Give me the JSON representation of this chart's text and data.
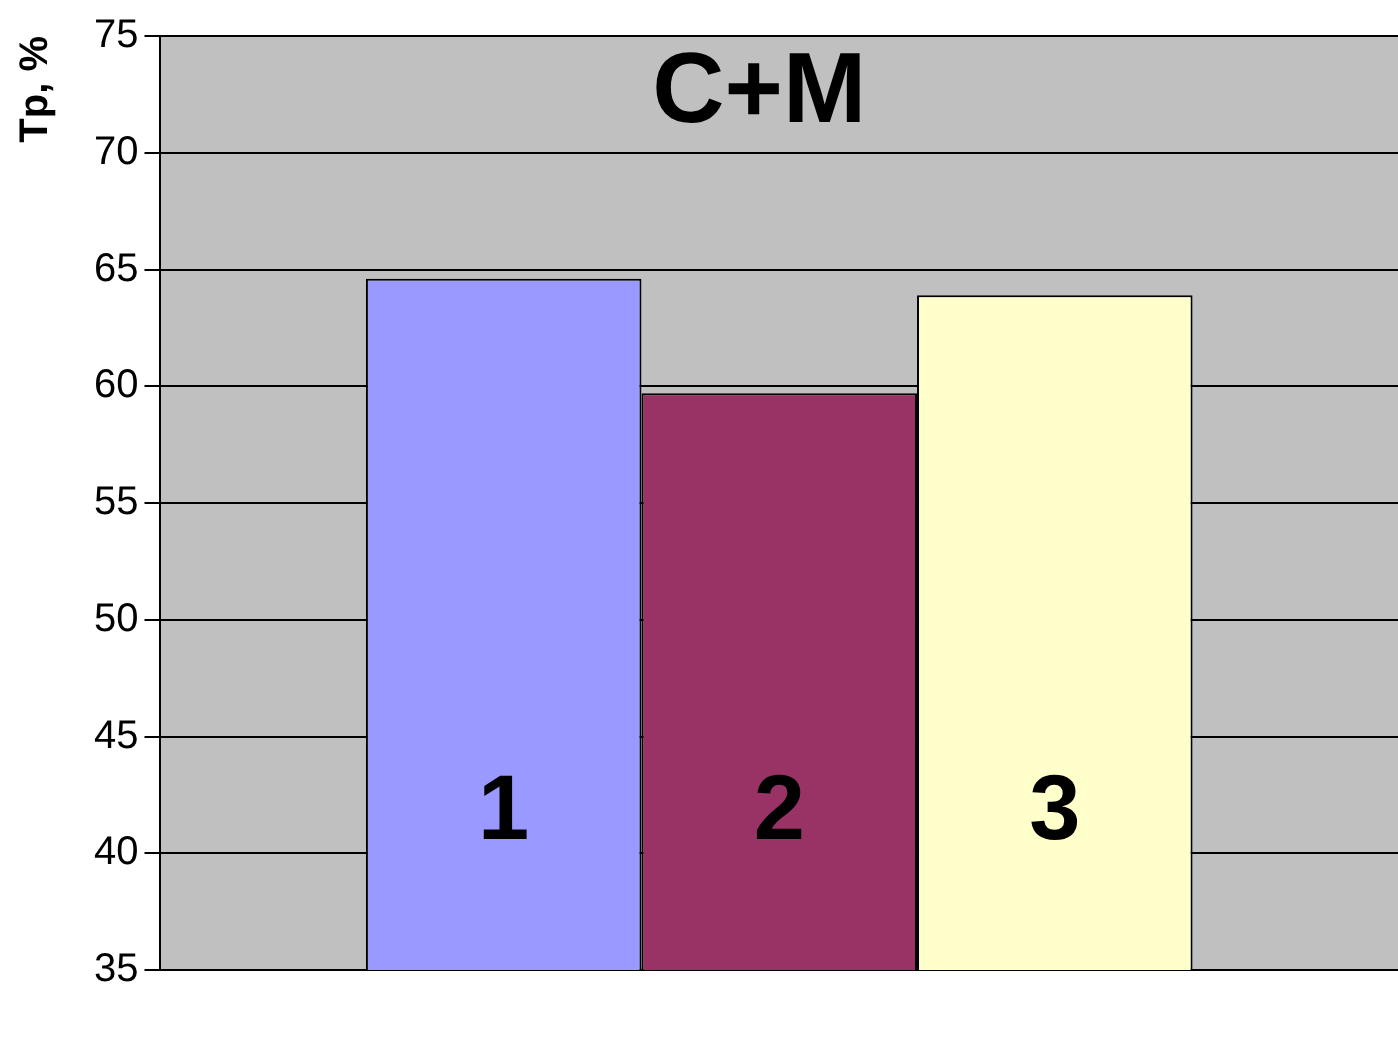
{
  "chart_data": {
    "type": "bar",
    "title": "C+M",
    "ylabel": "Tp, %",
    "categories": [
      null
    ],
    "series": [
      {
        "name": "1",
        "color": "#9999ff",
        "values": [
          64.6
        ]
      },
      {
        "name": "2",
        "color": "#993366",
        "values": [
          59.7
        ]
      },
      {
        "name": "3",
        "color": "#ffffcc",
        "values": [
          63.9
        ]
      }
    ],
    "ylim": [
      35,
      75
    ],
    "yticks": [
      35,
      40,
      45,
      50,
      55,
      60,
      65,
      70,
      75
    ],
    "grid": "y",
    "legend": false
  }
}
